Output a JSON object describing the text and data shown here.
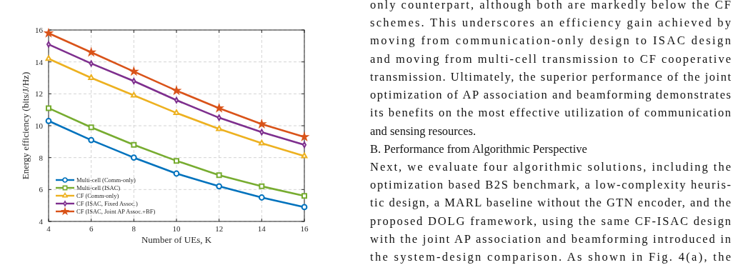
{
  "chart_data": {
    "type": "line",
    "xlabel": "Number of UEs, K",
    "ylabel": "Energy efficiency (bits/J/Hz)",
    "x": [
      4,
      6,
      8,
      10,
      12,
      14,
      16
    ],
    "xlim": [
      4,
      16
    ],
    "xticks": [
      4,
      6,
      8,
      10,
      12,
      14,
      16
    ],
    "ylim": [
      4,
      16
    ],
    "yticks": [
      4,
      6,
      8,
      10,
      12,
      14,
      16
    ],
    "grid": true,
    "legend": "bottom left",
    "line_style": "solid",
    "series": [
      {
        "name": "Multi-cell (Comm-only)",
        "color": "#0072bd",
        "marker": "circle",
        "values": [
          10.3,
          9.1,
          8.0,
          7.0,
          6.2,
          5.5,
          4.9
        ]
      },
      {
        "name": "Multi-cell (ISAC)",
        "color": "#77ac30",
        "marker": "square",
        "values": [
          11.1,
          9.9,
          8.8,
          7.8,
          6.9,
          6.2,
          5.6
        ]
      },
      {
        "name": "CF (Comm-only)",
        "color": "#edb120",
        "marker": "triangle",
        "values": [
          14.2,
          13.0,
          11.9,
          10.8,
          9.8,
          8.9,
          8.1
        ]
      },
      {
        "name": "CF (ISAC, Fixed Assoc.)",
        "color": "#7e2f8e",
        "marker": "diamond",
        "values": [
          15.1,
          13.9,
          12.8,
          11.6,
          10.5,
          9.6,
          8.8
        ]
      },
      {
        "name": "CF (ISAC, Joint AP Assoc.+BF)",
        "color": "#d95319",
        "marker": "star",
        "values": [
          15.8,
          14.6,
          13.4,
          12.2,
          11.1,
          10.1,
          9.3
        ]
      }
    ],
    "annotations": [
      "only counterpart, although both are markedly below the CF",
      "schemes. This underscores an efficiency gain achieved by",
      "moving from communication-only design to ISAC design",
      "and moving from multi-cell transmission to CF cooperative",
      "transmission. Ultimately, the superior performance of the joint",
      "optimization of AP association and beamforming demonstrates",
      "its benefits on the most effective utilization of communication",
      "and sensing resources.",
      "B. Performance from Algorithmic Perspective",
      "Next, we evaluate four algorithmic solutions, including the",
      "optimization based B2S benchmark, a low-complexity heuris-",
      "tic design, a MARL baseline without the GTN encoder, and the",
      "proposed DOLG framework, using the same CF-ISAC design",
      "with the joint AP association and beamforming introduced in",
      "the system-design comparison. As shown in Fig. 4(a), the"
    ]
  }
}
